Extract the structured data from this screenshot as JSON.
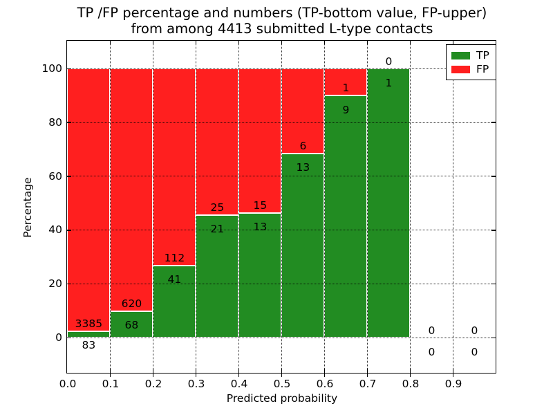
{
  "figure": {
    "background": "#ffffff"
  },
  "chart_data": {
    "type": "bar",
    "stacked": true,
    "title_line1": "TP /FP percentage and numbers (TP-bottom value, FP-upper)",
    "title_line2": "from among 4413 submitted L-type contacts",
    "xlabel": "Predicted probability",
    "ylabel": "Percentage",
    "x_tick_labels": [
      "0.0",
      "0.1",
      "0.2",
      "0.3",
      "0.4",
      "0.5",
      "0.6",
      "0.7",
      "0.8",
      "0.9"
    ],
    "y_tick_values": [
      0,
      20,
      40,
      60,
      80,
      100
    ],
    "xlim": [
      0.0,
      1.0
    ],
    "ylim": [
      -13,
      110
    ],
    "bin_width": 0.1,
    "bin_starts": [
      0.0,
      0.1,
      0.2,
      0.3,
      0.4,
      0.5,
      0.6,
      0.7,
      0.8,
      0.9
    ],
    "series": [
      {
        "name": "TP",
        "color": "#228c22",
        "counts": [
          83,
          68,
          41,
          21,
          13,
          13,
          9,
          1,
          0,
          0
        ]
      },
      {
        "name": "FP",
        "color": "#ff1f1f",
        "counts": [
          3385,
          620,
          112,
          25,
          15,
          6,
          1,
          0,
          0,
          0
        ]
      }
    ],
    "bar_heights_percent": {
      "TP": [
        2.4,
        9.9,
        26.8,
        45.7,
        46.4,
        68.4,
        90.0,
        100.0,
        0.0,
        0.0
      ],
      "FP": [
        97.6,
        90.1,
        73.2,
        54.3,
        53.6,
        31.6,
        10.0,
        0.0,
        0.0,
        0.0
      ]
    },
    "grid": true,
    "legend_position": "upper right"
  }
}
